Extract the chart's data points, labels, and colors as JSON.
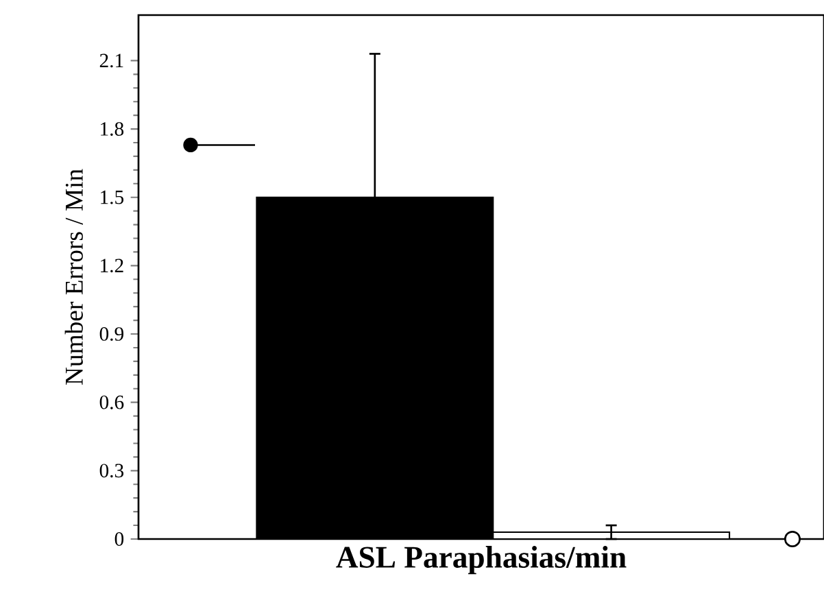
{
  "chart_data": {
    "type": "bar",
    "xlabel": "ASL Paraphasias/min",
    "ylabel": "Number Errors / Min",
    "categories": [
      null,
      null
    ],
    "ylim": [
      0,
      2.3
    ],
    "yticks": [
      0,
      0.3,
      0.6,
      0.9,
      1.2,
      1.5,
      1.8,
      2.1
    ],
    "values": [
      1.5,
      0.03
    ],
    "colors": [
      "#000000",
      "#ffffff"
    ],
    "errors": [
      0.63,
      0.03
    ]
  }
}
